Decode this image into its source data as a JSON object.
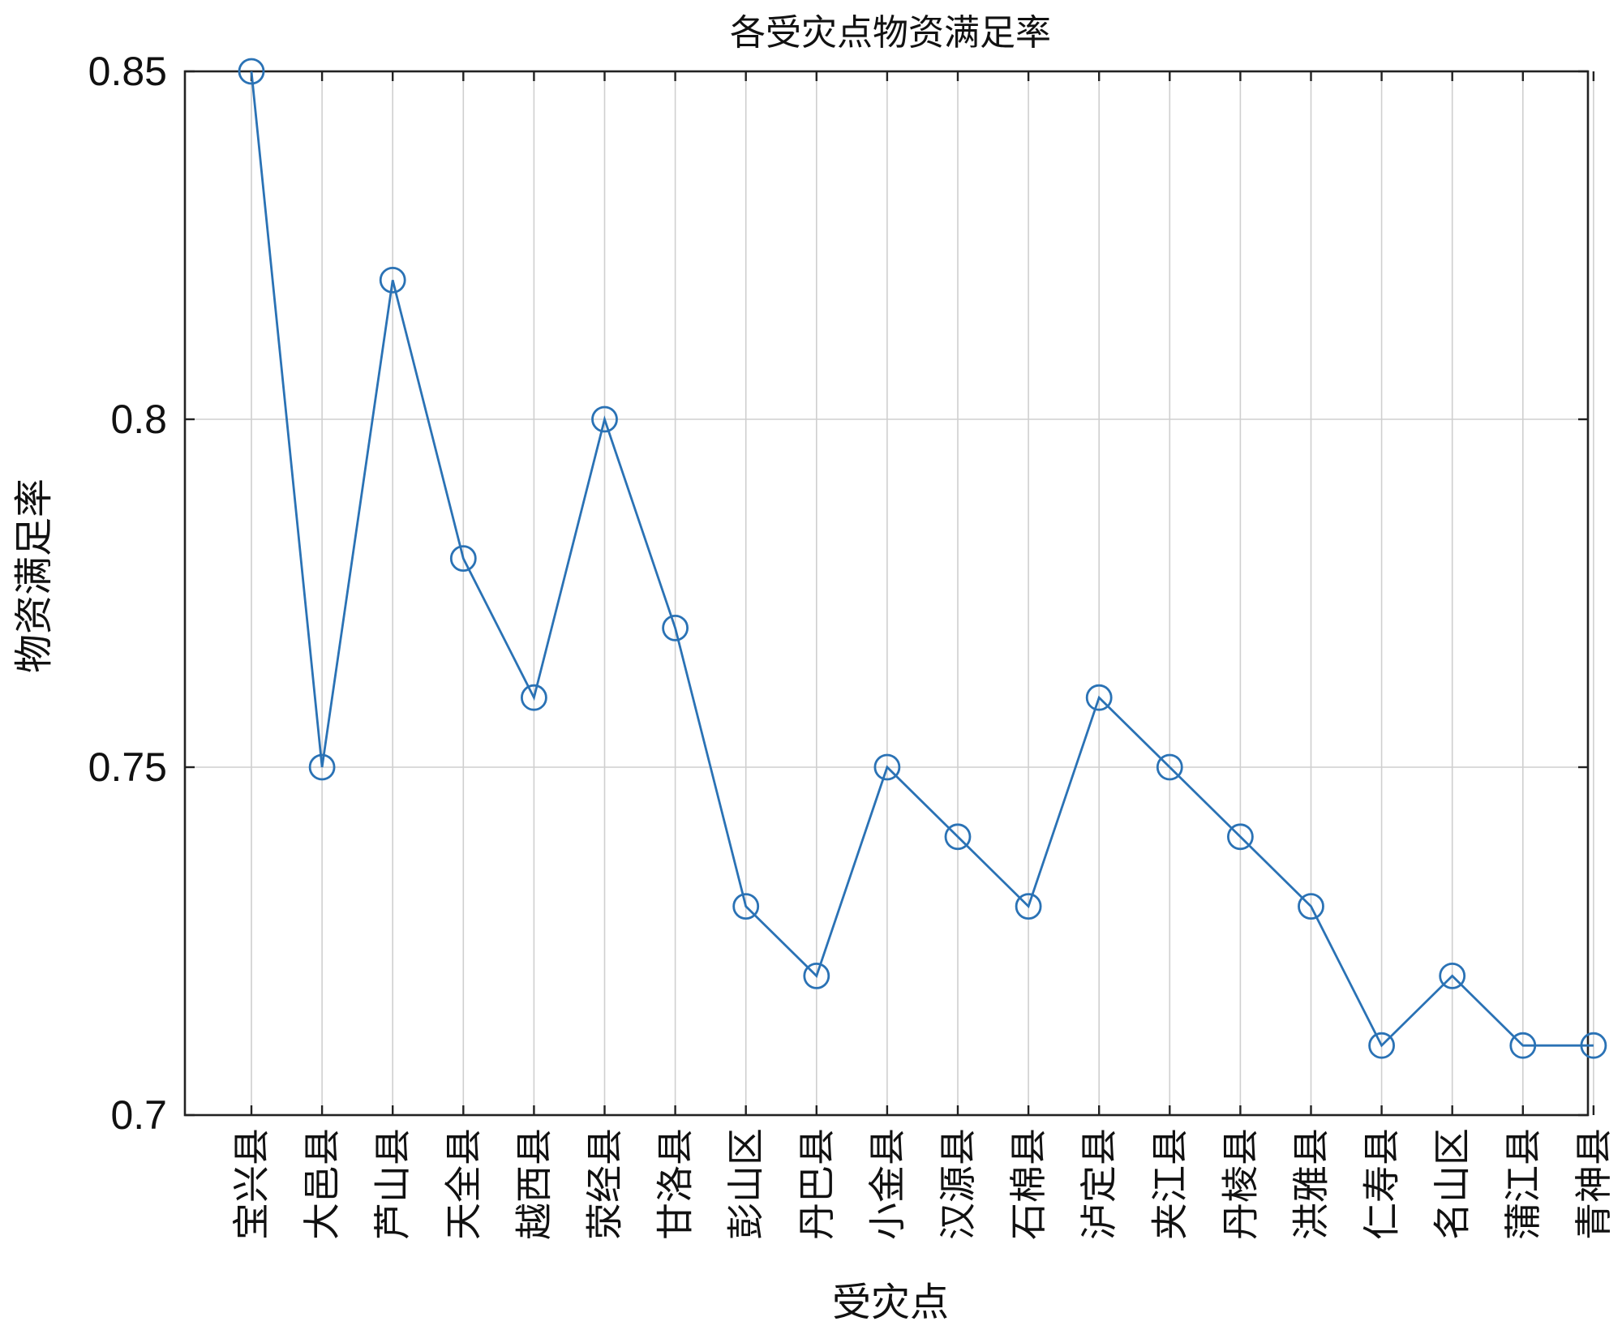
{
  "chart_data": {
    "type": "line",
    "title": "各受灾点物资满足率",
    "xlabel": "受灾点",
    "ylabel": "物资满足率",
    "categories": [
      "宝兴县",
      "大邑县",
      "芦山县",
      "天全县",
      "越西县",
      "荥经县",
      "甘洛县",
      "彭山区",
      "丹巴县",
      "小金县",
      "汉源县",
      "石棉县",
      "泸定县",
      "夹江县",
      "丹棱县",
      "洪雅县",
      "仁寿县",
      "名山区",
      "蒲江县",
      "青神县"
    ],
    "series": [
      {
        "values": [
          0.85,
          0.75,
          0.82,
          0.78,
          0.76,
          0.8,
          0.77,
          0.73,
          0.72,
          0.75,
          0.74,
          0.73,
          0.76,
          0.75,
          0.74,
          0.73,
          0.71,
          0.72,
          0.71,
          0.71
        ],
        "color": "#2a72b5",
        "marker": "circle"
      }
    ],
    "ylim": [
      0.7,
      0.85
    ],
    "yticks": [
      0.7,
      0.75,
      0.8,
      0.85
    ],
    "ytick_labels": [
      "0.7",
      "0.75",
      "0.8",
      "0.85"
    ],
    "grid": true,
    "legend": "none"
  }
}
